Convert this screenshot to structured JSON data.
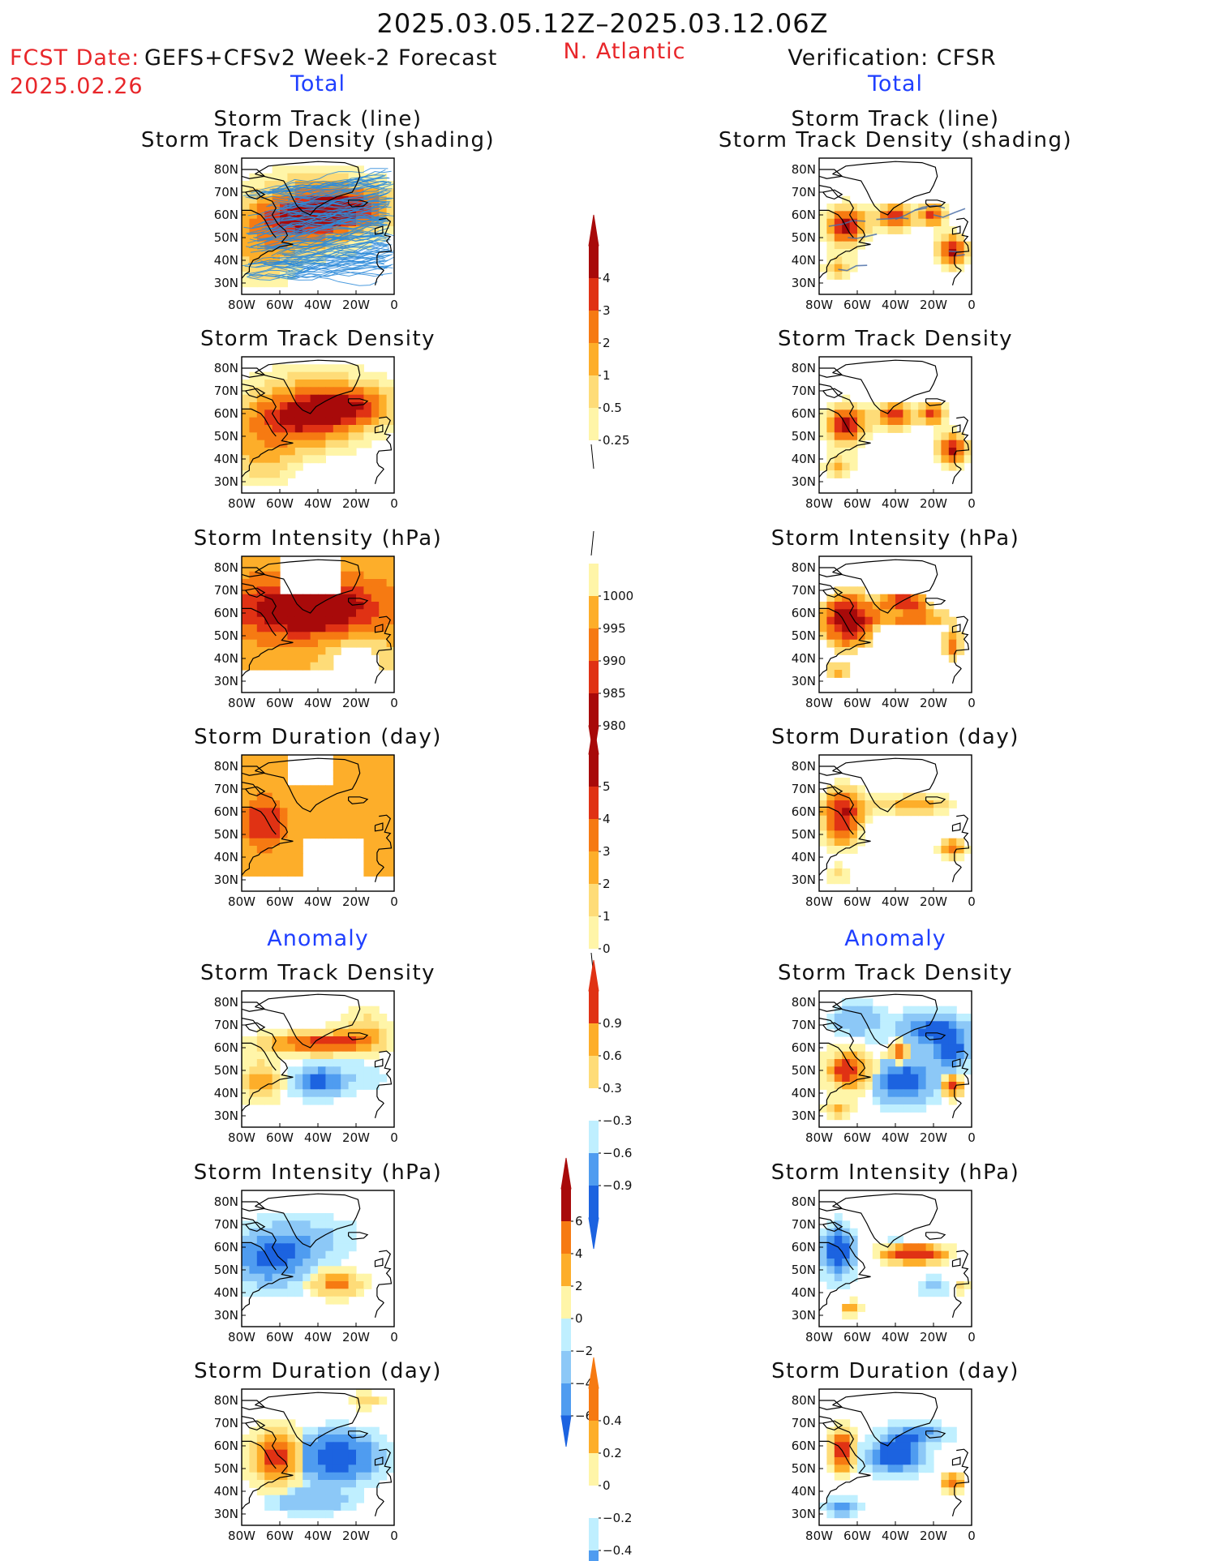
{
  "header": {
    "valid_period": "2025.03.05.12Z–2025.03.12.06Z",
    "fcst_date_label": "FCST Date:",
    "fcst_date_value": "2025.02.26",
    "forecast_name": "GEFS+CFSv2 Week-2 Forecast",
    "region": "N. Atlantic",
    "verification": "Verification: CFSR"
  },
  "sections": {
    "total_label": "Total",
    "anomaly_label": "Anomaly"
  },
  "panel_titles": {
    "track_line": "Storm Track (line)",
    "track_shading": "Storm Track Density (shading)",
    "density": "Storm Track Density",
    "intensity": "Storm Intensity (hPa)",
    "duration": "Storm Duration (day)"
  },
  "colors": {
    "warm_1": "#fff5a8",
    "warm_2": "#fedc78",
    "warm_3": "#fdae2a",
    "warm_4": "#f67a12",
    "warm_5": "#e03214",
    "warm_6": "#a80a0a",
    "cool_1": "#bfefff",
    "cool_2": "#8cc8f7",
    "cool_3": "#4f9cf0",
    "cool_4": "#1c63e0",
    "track_line": "#2e8bd9",
    "track_line_obs": "#4b6fa8"
  },
  "chart_data": [
    {
      "type": "heatmap",
      "panel": "forecast-total-track",
      "title": "Storm Track (line)",
      "subtitle": "Storm Track Density (shading)",
      "x_ticks": [
        "80W",
        "60W",
        "40W",
        "20W",
        "0"
      ],
      "y_ticks": [
        "30N",
        "40N",
        "50N",
        "60N",
        "70N",
        "80N"
      ],
      "xlim": [
        -80,
        0
      ],
      "ylim": [
        25,
        85
      ],
      "colorbar": [
        "0.25",
        "0.5",
        "1",
        "2",
        "3",
        "4"
      ]
    },
    {
      "type": "heatmap",
      "panel": "verification-total-track",
      "title": "Storm Track (line)",
      "subtitle": "Storm Track Density (shading)",
      "x_ticks": [
        "80W",
        "60W",
        "40W",
        "20W",
        "0"
      ],
      "y_ticks": [
        "30N",
        "40N",
        "50N",
        "60N",
        "70N",
        "80N"
      ],
      "colorbar": [
        "0.25",
        "0.5",
        "1",
        "2",
        "3",
        "4"
      ]
    },
    {
      "type": "heatmap",
      "panel": "forecast-total-density",
      "title": "Storm Track Density",
      "x_ticks": [
        "80W",
        "60W",
        "40W",
        "20W",
        "0"
      ],
      "y_ticks": [
        "30N",
        "40N",
        "50N",
        "60N",
        "70N",
        "80N"
      ],
      "colorbar": [
        "0.25",
        "0.5",
        "1",
        "2",
        "3",
        "4"
      ]
    },
    {
      "type": "heatmap",
      "panel": "verification-total-density",
      "title": "Storm Track Density",
      "x_ticks": [
        "80W",
        "60W",
        "40W",
        "20W",
        "0"
      ],
      "y_ticks": [
        "30N",
        "40N",
        "50N",
        "60N",
        "70N",
        "80N"
      ],
      "colorbar": [
        "0.25",
        "0.5",
        "1",
        "2",
        "3",
        "4"
      ]
    },
    {
      "type": "heatmap",
      "panel": "forecast-total-intensity",
      "title": "Storm Intensity (hPa)",
      "x_ticks": [
        "80W",
        "60W",
        "40W",
        "20W",
        "0"
      ],
      "y_ticks": [
        "30N",
        "40N",
        "50N",
        "60N",
        "70N",
        "80N"
      ],
      "colorbar": [
        "1000",
        "995",
        "990",
        "985",
        "980"
      ]
    },
    {
      "type": "heatmap",
      "panel": "verification-total-intensity",
      "title": "Storm Intensity (hPa)",
      "x_ticks": [
        "80W",
        "60W",
        "40W",
        "20W",
        "0"
      ],
      "y_ticks": [
        "30N",
        "40N",
        "50N",
        "60N",
        "70N",
        "80N"
      ],
      "colorbar": [
        "1000",
        "995",
        "990",
        "985",
        "980"
      ]
    },
    {
      "type": "heatmap",
      "panel": "forecast-total-duration",
      "title": "Storm Duration (day)",
      "x_ticks": [
        "80W",
        "60W",
        "40W",
        "20W",
        "0"
      ],
      "y_ticks": [
        "30N",
        "40N",
        "50N",
        "60N",
        "70N",
        "80N"
      ],
      "colorbar": [
        "0",
        "1",
        "2",
        "3",
        "4",
        "5"
      ]
    },
    {
      "type": "heatmap",
      "panel": "verification-total-duration",
      "title": "Storm Duration (day)",
      "x_ticks": [
        "80W",
        "60W",
        "40W",
        "20W",
        "0"
      ],
      "y_ticks": [
        "30N",
        "40N",
        "50N",
        "60N",
        "70N",
        "80N"
      ],
      "colorbar": [
        "0",
        "1",
        "2",
        "3",
        "4",
        "5"
      ]
    },
    {
      "type": "heatmap",
      "panel": "forecast-anomaly-density",
      "title": "Storm Track Density",
      "x_ticks": [
        "80W",
        "60W",
        "40W",
        "20W",
        "0"
      ],
      "y_ticks": [
        "30N",
        "40N",
        "50N",
        "60N",
        "70N",
        "80N"
      ],
      "colorbar": [
        "0.9",
        "0.6",
        "0.3",
        "−0.3",
        "−0.6",
        "−0.9"
      ]
    },
    {
      "type": "heatmap",
      "panel": "verification-anomaly-density",
      "title": "Storm Track Density",
      "x_ticks": [
        "80W",
        "60W",
        "40W",
        "20W",
        "0"
      ],
      "y_ticks": [
        "30N",
        "40N",
        "50N",
        "60N",
        "70N",
        "80N"
      ],
      "colorbar": [
        "0.9",
        "0.6",
        "0.3",
        "−0.3",
        "−0.6",
        "−0.9"
      ]
    },
    {
      "type": "heatmap",
      "panel": "forecast-anomaly-intensity",
      "title": "Storm Intensity (hPa)",
      "x_ticks": [
        "80W",
        "60W",
        "40W",
        "20W",
        "0"
      ],
      "y_ticks": [
        "30N",
        "40N",
        "50N",
        "60N",
        "70N",
        "80N"
      ],
      "colorbar": [
        "6",
        "4",
        "2",
        "0",
        "−2",
        "−4",
        "−6"
      ]
    },
    {
      "type": "heatmap",
      "panel": "verification-anomaly-intensity",
      "title": "Storm Intensity (hPa)",
      "x_ticks": [
        "80W",
        "60W",
        "40W",
        "20W",
        "0"
      ],
      "y_ticks": [
        "30N",
        "40N",
        "50N",
        "60N",
        "70N",
        "80N"
      ],
      "colorbar": [
        "6",
        "4",
        "2",
        "0",
        "−2",
        "−4",
        "−6"
      ]
    },
    {
      "type": "heatmap",
      "panel": "forecast-anomaly-duration",
      "title": "Storm Duration (day)",
      "x_ticks": [
        "80W",
        "60W",
        "40W",
        "20W",
        "0"
      ],
      "y_ticks": [
        "30N",
        "40N",
        "50N",
        "60N",
        "70N",
        "80N"
      ],
      "colorbar": [
        "0.4",
        "0.2",
        "0",
        "−0.2",
        "−0.4"
      ]
    },
    {
      "type": "heatmap",
      "panel": "verification-anomaly-duration",
      "title": "Storm Duration (day)",
      "x_ticks": [
        "80W",
        "60W",
        "40W",
        "20W",
        "0"
      ],
      "y_ticks": [
        "30N",
        "40N",
        "50N",
        "60N",
        "70N",
        "80N"
      ],
      "colorbar": [
        "0.4",
        "0.2",
        "0",
        "−0.2",
        "−0.4"
      ]
    }
  ]
}
